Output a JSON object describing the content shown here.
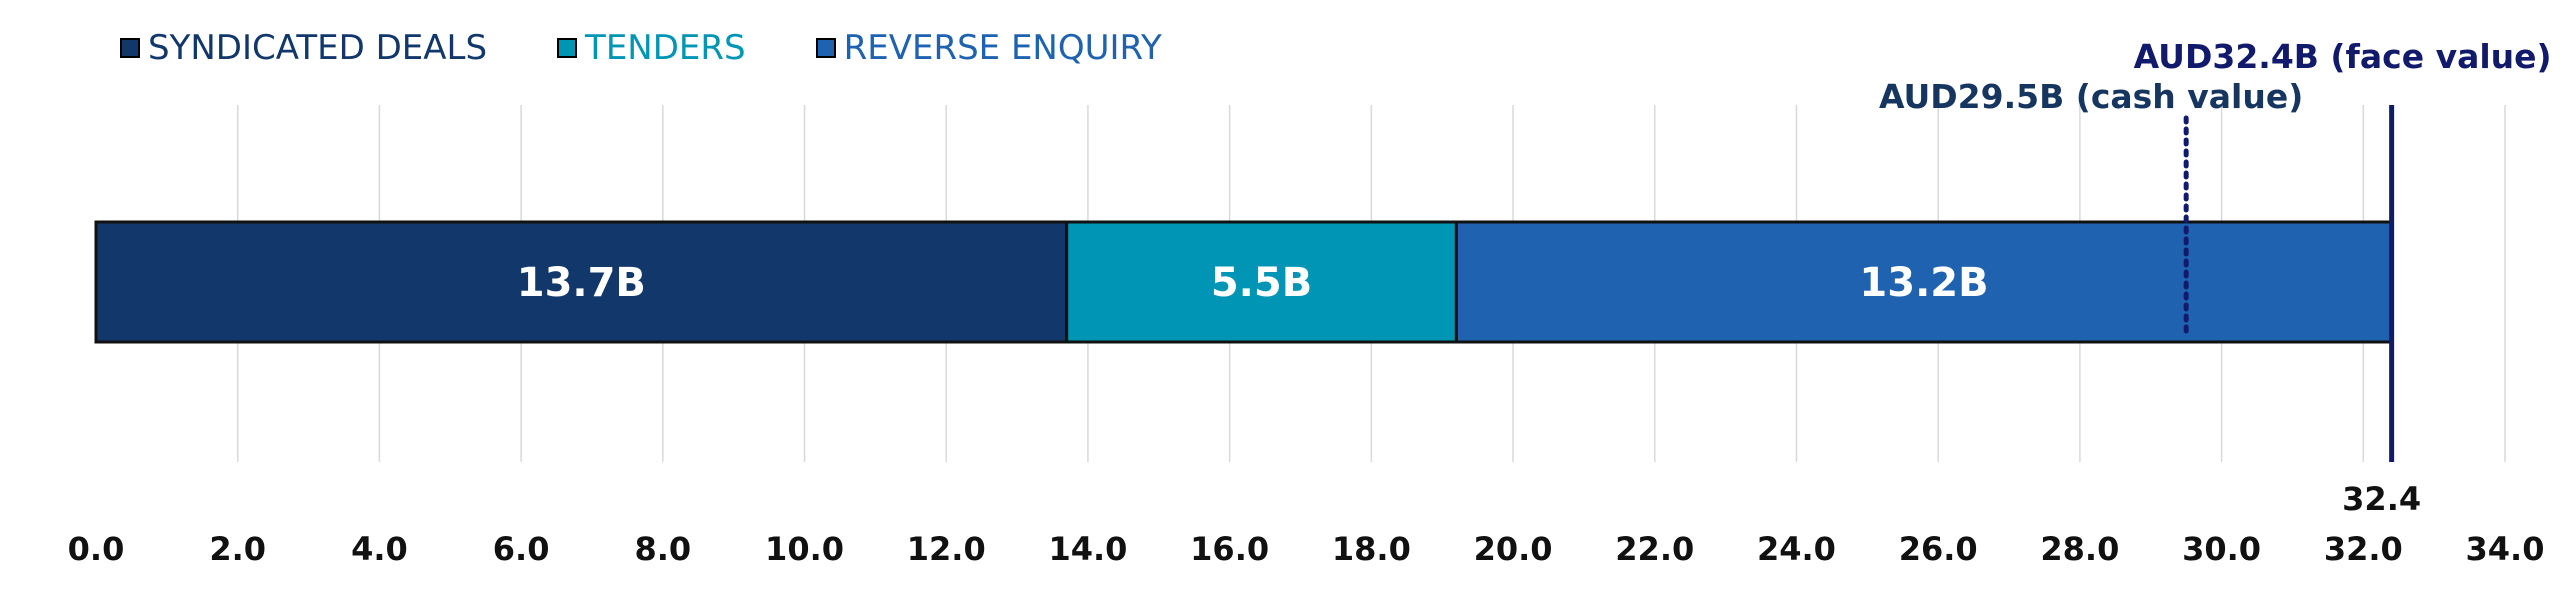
{
  "colors": {
    "syndicated": "#12376a",
    "tenders": "#0095b4",
    "reverse": "#1f62b0",
    "marker": "#111a6b",
    "cash_label": "#16365f",
    "grid": "#d9d9d9"
  },
  "legend": [
    {
      "label": "SYNDICATED DEALS",
      "color": "#12376a",
      "text_color": "#12376a"
    },
    {
      "label": "TENDERS",
      "color": "#0095b4",
      "text_color": "#0095b4"
    },
    {
      "label": "REVERSE ENQUIRY",
      "color": "#1f62b0",
      "text_color": "#1f62b0"
    }
  ],
  "chart_data": {
    "type": "bar",
    "orientation": "horizontal",
    "stacked": true,
    "xlim": [
      0,
      34
    ],
    "x_ticks": [
      "0.0",
      "2.0",
      "4.0",
      "6.0",
      "8.0",
      "10.0",
      "12.0",
      "14.0",
      "16.0",
      "18.0",
      "20.0",
      "22.0",
      "24.0",
      "26.0",
      "28.0",
      "30.0",
      "32.0",
      "34.0"
    ],
    "grid": true,
    "legend_position": "top-left",
    "series": [
      {
        "name": "SYNDICATED DEALS",
        "value": 13.7,
        "label": "13.7B"
      },
      {
        "name": "TENDERS",
        "value": 5.5,
        "label": "5.5B"
      },
      {
        "name": "REVERSE ENQUIRY",
        "value": 13.2,
        "label": "13.2B"
      }
    ],
    "markers": [
      {
        "label": "AUD32.4B (face value)",
        "value": 32.4,
        "style": "solid",
        "value_label": "32.4"
      },
      {
        "label": "AUD29.5B (cash value)",
        "value": 29.5,
        "style": "dotted"
      }
    ]
  }
}
